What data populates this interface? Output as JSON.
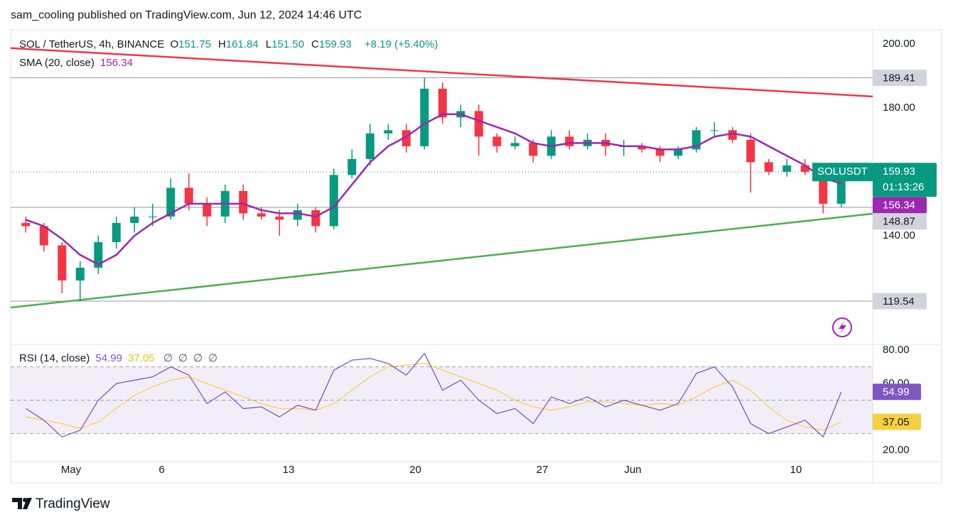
{
  "header": "sam_cooling published on TradingView.com, Jun 12, 2024 14:46 UTC",
  "footer": "TradingView",
  "chart_data": {
    "type": "candlestick",
    "symbol": "SOL / TetherUS, 4h, BINANCE",
    "ohlc_legend": [
      {
        "label": "O",
        "value": "151.75"
      },
      {
        "label": "H",
        "value": "161.84"
      },
      {
        "label": "L",
        "value": "151.50"
      },
      {
        "label": "C",
        "value": "159.93"
      }
    ],
    "change": "+8.19 (+5.40%)",
    "ticker": "SOLUSDT",
    "countdown": "01:13:26",
    "up_color": "#089981",
    "down_color": "#f23645",
    "x": [
      "Apr 28",
      "Apr 29",
      "Apr 30",
      "May 1",
      "May 2",
      "May 3",
      "May 4",
      "May 5",
      "May 6",
      "May 7",
      "May 8",
      "May 9",
      "May 10",
      "May 11",
      "May 12",
      "May 13",
      "May 14",
      "May 15",
      "May 16",
      "May 17",
      "May 18",
      "May 19",
      "May 20",
      "May 21",
      "May 22",
      "May 23",
      "May 24",
      "May 25",
      "May 26",
      "May 27",
      "May 28",
      "May 29",
      "May 30",
      "May 31",
      "Jun 1",
      "Jun 2",
      "Jun 3",
      "Jun 4",
      "Jun 5",
      "Jun 6",
      "Jun 7",
      "Jun 8",
      "Jun 9",
      "Jun 10",
      "Jun 11",
      "Jun 12"
    ],
    "open": [
      144,
      143,
      137,
      126,
      130,
      138,
      144,
      146,
      146,
      155,
      150,
      146,
      154,
      147,
      146,
      145,
      148,
      143,
      159,
      164,
      172,
      173,
      168,
      186,
      177,
      179,
      171,
      168,
      169,
      165,
      171,
      168,
      170,
      168,
      168,
      167,
      165,
      167,
      173,
      173,
      170,
      163,
      160,
      162,
      160,
      150
    ],
    "high": [
      146,
      144,
      138,
      132,
      140,
      146,
      149,
      150,
      158,
      159.5,
      152,
      156,
      156,
      149,
      148,
      150,
      149,
      161,
      167,
      175,
      175,
      175,
      189.41,
      188,
      181,
      181,
      172,
      171,
      170,
      173,
      173,
      172,
      172,
      170,
      169,
      168,
      168,
      174,
      175.5,
      174,
      172,
      164,
      164,
      164,
      161,
      161.84
    ],
    "low": [
      141,
      135,
      122,
      119.5,
      128,
      136,
      141,
      143,
      145,
      148,
      143,
      144,
      145,
      145,
      140,
      143,
      141,
      142,
      158,
      162,
      170,
      166,
      167,
      175,
      174,
      165,
      166,
      167,
      163,
      164,
      167,
      167,
      165,
      165,
      166,
      163,
      164,
      166,
      171,
      169,
      153.5,
      159,
      158.5,
      159,
      147,
      148.9
    ],
    "close": [
      143,
      137,
      126,
      130,
      138,
      144,
      146,
      146,
      155,
      150,
      146,
      154,
      147,
      146,
      145,
      148,
      143,
      159,
      164,
      172,
      173,
      168,
      186,
      177,
      179,
      171,
      168,
      169,
      165,
      171,
      168,
      170,
      168,
      168,
      167,
      165,
      167,
      173,
      173,
      170,
      163,
      160,
      162,
      160,
      150,
      159.93
    ],
    "ylim": [
      106,
      204.4
    ],
    "yticks": [
      {
        "value": 200,
        "label": "200.00"
      },
      {
        "value": 180,
        "label": "180.00"
      },
      {
        "value": 140,
        "label": "140.00"
      }
    ],
    "levels": [
      189.41,
      148.87,
      119.54
    ],
    "trendlines": [
      {
        "color": "#f23645",
        "start": 198.67,
        "end": 183.56
      },
      {
        "color": "#4caf50",
        "start": 117.56,
        "end": 146.89
      }
    ],
    "xticks": [
      {
        "value": "May 1",
        "label": "May"
      },
      {
        "value": "May 6",
        "label": "6"
      },
      {
        "value": "May 13",
        "label": "13"
      },
      {
        "value": "May 20",
        "label": "20"
      },
      {
        "value": "May 27",
        "label": "27"
      },
      {
        "value": "Jun 1",
        "label": "Jun"
      },
      {
        "value": "Jun 10",
        "label": "10"
      }
    ],
    "sma": {
      "name": "SMA (20, close)",
      "color": "#9c27b0",
      "values": [
        145,
        143,
        139,
        134,
        131,
        134,
        140,
        144,
        147,
        150,
        150,
        150,
        150,
        148,
        147,
        147,
        146,
        149,
        156,
        163,
        168,
        171,
        175,
        178,
        178,
        176,
        174,
        172,
        169,
        168,
        169,
        169,
        169,
        168,
        168,
        167,
        167,
        168,
        171,
        172,
        171,
        168,
        165,
        162,
        158,
        156.34
      ]
    },
    "rsi": {
      "name": "RSI (14, close)",
      "color": "#7e57c2",
      "ma_color": "#f5d142",
      "text_ma_color": "#e8c21a",
      "values": [
        45,
        38,
        28,
        32,
        50,
        60,
        62,
        64,
        70,
        65,
        48,
        55,
        45,
        46,
        40,
        47,
        44,
        68,
        74,
        75,
        72,
        65,
        78,
        56,
        62,
        50,
        42,
        45,
        36,
        52,
        48,
        52,
        46,
        50,
        47,
        44,
        48,
        66,
        70,
        58,
        36,
        30,
        34,
        38,
        28,
        54.99
      ],
      "ma_values": [
        40,
        38,
        36,
        33,
        37,
        45,
        53,
        58,
        62,
        64,
        60,
        56,
        52,
        48,
        45,
        45,
        44,
        48,
        56,
        64,
        70,
        71,
        72,
        68,
        64,
        60,
        56,
        50,
        46,
        44,
        46,
        49,
        49,
        48,
        47,
        48,
        47,
        52,
        58,
        62,
        56,
        46,
        38,
        34,
        32,
        37.05
      ],
      "extras": [
        "∅",
        "∅",
        "∅",
        "∅"
      ],
      "ylim": [
        13.2,
        83.4
      ],
      "yticks": [
        {
          "value": 80,
          "label": "80.00"
        },
        {
          "value": 60,
          "label": "60.00"
        },
        {
          "value": 20,
          "label": "20.00"
        }
      ],
      "band": [
        30,
        70
      ],
      "midline": 50
    }
  }
}
